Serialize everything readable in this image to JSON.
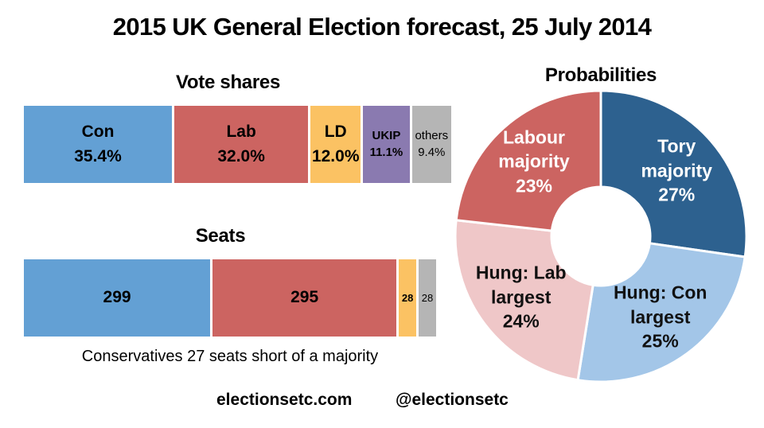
{
  "title": "2015 UK General Election forecast, 25 July 2014",
  "footer": {
    "site": "electionsetc.com",
    "twitter": "@electionsetc"
  },
  "chart_data": [
    {
      "type": "bar",
      "variant": "stacked-horizontal",
      "title": "Vote shares",
      "unit": "percent",
      "segments": [
        {
          "party": "Con",
          "label_lines": [
            "Con",
            "35.4%"
          ],
          "value": 35.4,
          "color": "#63A0D4",
          "label_size": "lg",
          "label_weight": "bold"
        },
        {
          "party": "Lab",
          "label_lines": [
            "Lab",
            "32.0%"
          ],
          "value": 32.0,
          "color": "#CC6461",
          "label_size": "lg",
          "label_weight": "bold"
        },
        {
          "party": "LD",
          "label_lines": [
            "LD",
            "12.0%"
          ],
          "value": 12.0,
          "color": "#FBC263",
          "label_size": "lg",
          "label_weight": "bold"
        },
        {
          "party": "UKIP",
          "label_lines": [
            "UKIP",
            "11.1%"
          ],
          "value": 11.1,
          "color": "#8A7AB0",
          "label_size": "sm",
          "label_weight": "bold"
        },
        {
          "party": "others",
          "label_lines": [
            "others",
            "9.4%"
          ],
          "value": 9.4,
          "color": "#B5B5B5",
          "label_size": "sm",
          "label_weight": "normal"
        }
      ]
    },
    {
      "type": "bar",
      "variant": "stacked-horizontal",
      "title": "Seats",
      "unit": "seats",
      "caption": "Conservatives 27 seats short of a majority",
      "segments": [
        {
          "party": "Con",
          "label_lines": [
            "299"
          ],
          "value": 299,
          "color": "#63A0D4",
          "label_size": "lg",
          "label_weight": "bold"
        },
        {
          "party": "Lab",
          "label_lines": [
            "295"
          ],
          "value": 295,
          "color": "#CC6461",
          "label_size": "lg",
          "label_weight": "bold"
        },
        {
          "party": "LD",
          "label_lines": [
            "28"
          ],
          "value": 28,
          "color": "#FBC263",
          "label_size": "sm",
          "label_weight": "bold"
        },
        {
          "party": "others",
          "label_lines": [
            "28"
          ],
          "value": 28,
          "color": "#B5B5B5",
          "label_size": "sm",
          "label_weight": "normal"
        }
      ]
    },
    {
      "type": "pie",
      "variant": "donut",
      "title": "Probabilities",
      "start": "top",
      "direction": "clockwise",
      "segments": [
        {
          "name": "Tory majority",
          "label_lines": [
            "Tory",
            "majority",
            "27%"
          ],
          "value": 27,
          "color": "#2D618F",
          "text_color": "#FFFFFF"
        },
        {
          "name": "Hung: Con largest",
          "label_lines": [
            "Hung: Con",
            "largest",
            "25%"
          ],
          "value": 25,
          "color": "#A3C6E8",
          "text_color": "#111111"
        },
        {
          "name": "Hung: Lab largest",
          "label_lines": [
            "Hung: Lab",
            "largest",
            "24%"
          ],
          "value": 24,
          "color": "#EFC7C8",
          "text_color": "#111111"
        },
        {
          "name": "Labour majority",
          "label_lines": [
            "Labour",
            "majority",
            "23%"
          ],
          "value": 23,
          "color": "#CC6461",
          "text_color": "#FFFFFF"
        }
      ]
    }
  ]
}
